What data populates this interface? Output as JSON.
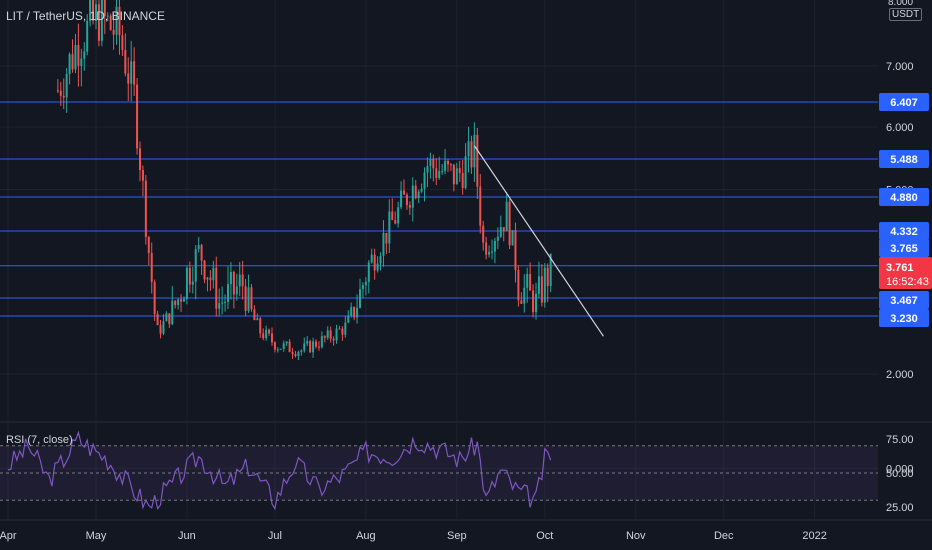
{
  "header": {
    "symbol_title": "LIT / TetherUS, 1D, BINANCE",
    "currency": "USDT",
    "top_tick": "8.000"
  },
  "rsi": {
    "title": "RSI (7, close)"
  },
  "chart_data": [
    {
      "type": "candlestick",
      "title": "LIT / TetherUS, 1D, BINANCE",
      "y_ticks": [
        "7.000",
        "6.000",
        "5.000",
        "2.000",
        "0.000"
      ],
      "x_ticks": [
        "Apr",
        "May",
        "Jun",
        "Jul",
        "Aug",
        "Sep",
        "Oct",
        "Nov",
        "Dec",
        "2022"
      ],
      "horizontal_levels": [
        {
          "value": 6.407,
          "label": "6.407"
        },
        {
          "value": 5.488,
          "label": "5.488"
        },
        {
          "value": 4.88,
          "label": "4.880"
        },
        {
          "value": 4.332,
          "label": "4.332"
        },
        {
          "value": 3.765,
          "label": "3.765"
        },
        {
          "value": 3.467,
          "label": "3.467"
        },
        {
          "value": 3.23,
          "label": "3.230"
        }
      ],
      "last_price": {
        "value": 3.761,
        "label": "3.761",
        "countdown": "16:52:43"
      },
      "trendline": {
        "from": {
          "date": "2021-09-07",
          "value": 5.7
        },
        "to": {
          "date": "2021-10-21",
          "value": 2.8
        }
      },
      "anchors": [
        {
          "date": "2021-04-18",
          "value": 6.6
        },
        {
          "date": "2021-04-25",
          "value": 7.4
        },
        {
          "date": "2021-05-02",
          "value": 7.8
        },
        {
          "date": "2021-05-09",
          "value": 7.5
        },
        {
          "date": "2021-05-14",
          "value": 6.5
        },
        {
          "date": "2021-05-19",
          "value": 4.0
        },
        {
          "date": "2021-05-22",
          "value": 2.9
        },
        {
          "date": "2021-05-27",
          "value": 3.3
        },
        {
          "date": "2021-06-05",
          "value": 4.0
        },
        {
          "date": "2021-06-12",
          "value": 3.4
        },
        {
          "date": "2021-06-20",
          "value": 3.6
        },
        {
          "date": "2021-06-26",
          "value": 2.9
        },
        {
          "date": "2021-07-02",
          "value": 2.6
        },
        {
          "date": "2021-07-10",
          "value": 2.5
        },
        {
          "date": "2021-07-20",
          "value": 2.8
        },
        {
          "date": "2021-07-25",
          "value": 3.0
        },
        {
          "date": "2021-08-01",
          "value": 3.7
        },
        {
          "date": "2021-08-08",
          "value": 4.3
        },
        {
          "date": "2021-08-15",
          "value": 4.9
        },
        {
          "date": "2021-08-22",
          "value": 5.4
        },
        {
          "date": "2021-08-27",
          "value": 5.3
        },
        {
          "date": "2021-09-01",
          "value": 5.2
        },
        {
          "date": "2021-09-07",
          "value": 5.6
        },
        {
          "date": "2021-09-10",
          "value": 4.1
        },
        {
          "date": "2021-09-14",
          "value": 4.3
        },
        {
          "date": "2021-09-18",
          "value": 4.6
        },
        {
          "date": "2021-09-22",
          "value": 3.6
        },
        {
          "date": "2021-09-28",
          "value": 3.4
        },
        {
          "date": "2021-10-03",
          "value": 3.76
        }
      ]
    },
    {
      "type": "line",
      "title": "RSI (7, close)",
      "y_ticks": [
        "75.00",
        "50.00",
        "25.00"
      ],
      "bands": [
        30,
        70
      ],
      "anchors": [
        {
          "date": "2021-04-01",
          "value": 55
        },
        {
          "date": "2021-04-08",
          "value": 70
        },
        {
          "date": "2021-04-15",
          "value": 45
        },
        {
          "date": "2021-04-25",
          "value": 75
        },
        {
          "date": "2021-05-05",
          "value": 60
        },
        {
          "date": "2021-05-12",
          "value": 42
        },
        {
          "date": "2021-05-19",
          "value": 25
        },
        {
          "date": "2021-05-27",
          "value": 42
        },
        {
          "date": "2021-06-05",
          "value": 62
        },
        {
          "date": "2021-06-14",
          "value": 40
        },
        {
          "date": "2021-06-22",
          "value": 55
        },
        {
          "date": "2021-07-01",
          "value": 30
        },
        {
          "date": "2021-07-08",
          "value": 58
        },
        {
          "date": "2021-07-16",
          "value": 38
        },
        {
          "date": "2021-07-25",
          "value": 50
        },
        {
          "date": "2021-08-01",
          "value": 66
        },
        {
          "date": "2021-08-10",
          "value": 62
        },
        {
          "date": "2021-08-18",
          "value": 75
        },
        {
          "date": "2021-08-26",
          "value": 68
        },
        {
          "date": "2021-09-02",
          "value": 60
        },
        {
          "date": "2021-09-08",
          "value": 72
        },
        {
          "date": "2021-09-11",
          "value": 30
        },
        {
          "date": "2021-09-16",
          "value": 52
        },
        {
          "date": "2021-09-21",
          "value": 38
        },
        {
          "date": "2021-09-28",
          "value": 30
        },
        {
          "date": "2021-10-01",
          "value": 60
        },
        {
          "date": "2021-10-03",
          "value": 64
        }
      ]
    }
  ],
  "colors": {
    "background": "#131722",
    "grid": "#1e222d",
    "level_line": "#2962ff",
    "level_label_bg": "#2962ff",
    "last_price_bg": "#f23645",
    "up": "#26a69a",
    "down": "#ef5350",
    "trendline": "#d1d4dc",
    "rsi_line": "#7e57c2",
    "rsi_band": "rgba(126,87,194,0.10)",
    "text": "#d1d4dc"
  }
}
